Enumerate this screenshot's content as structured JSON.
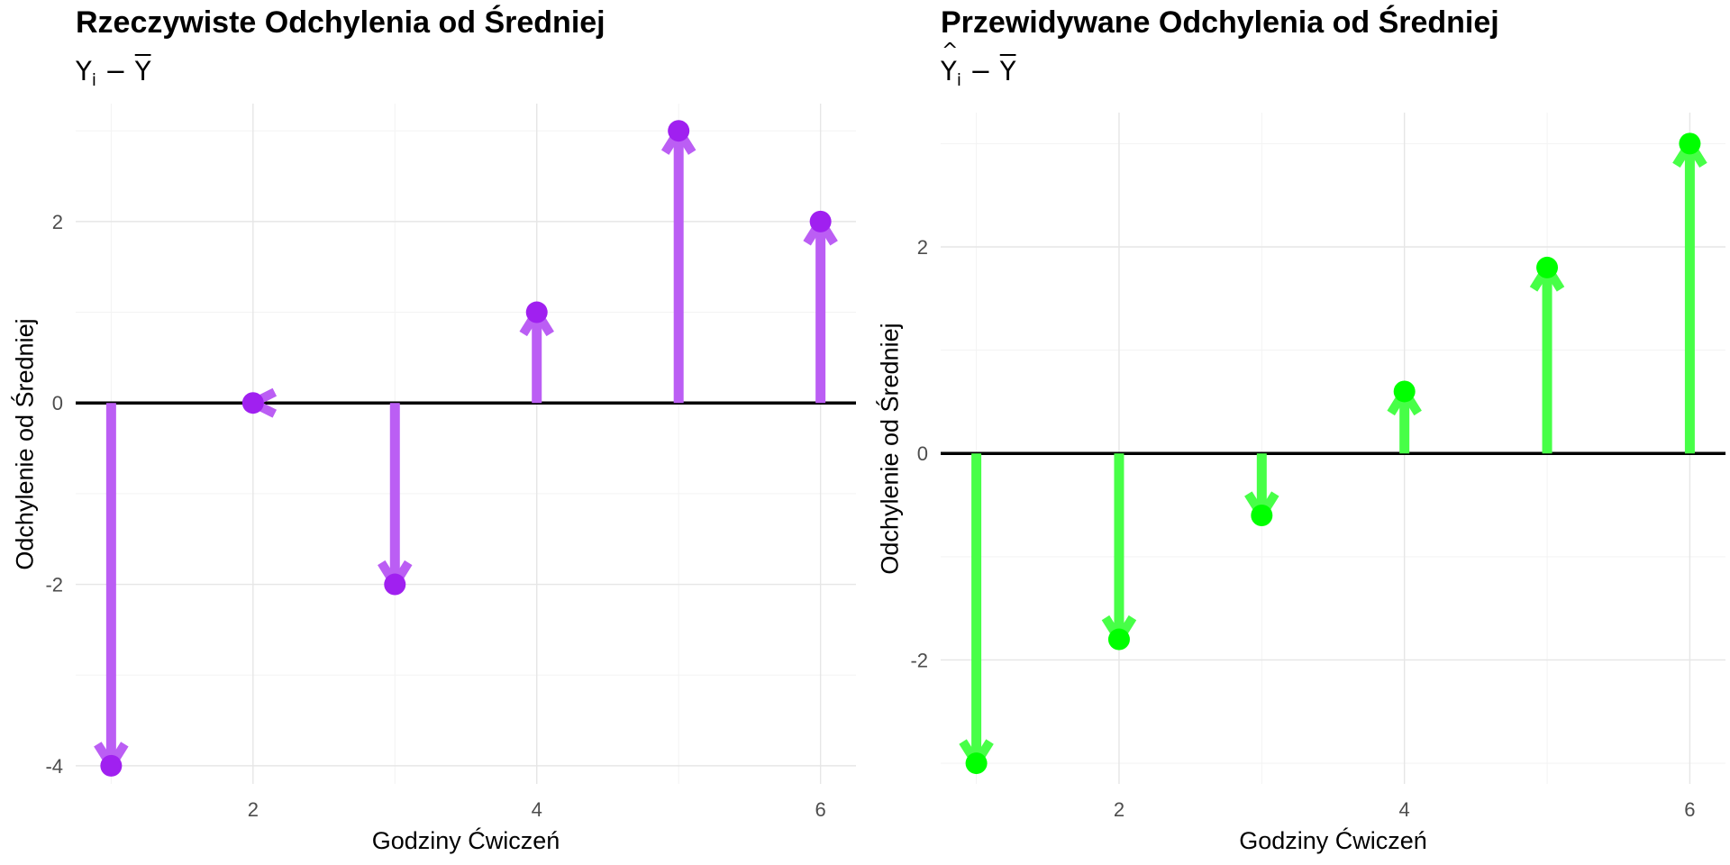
{
  "chart_data": [
    {
      "type": "line",
      "title": "Rzeczywiste Odchylenia od Średniej",
      "subtitle": "Y_i − Ȳ",
      "xlabel": "Godziny Ćwiczeń",
      "ylabel": "Odchylenie od Średniej",
      "xlim": [
        0.75,
        6.25
      ],
      "ylim": [
        -4.2,
        3.3
      ],
      "xticks": [
        2,
        4,
        6
      ],
      "yticks": [
        -4,
        -2,
        0,
        2
      ],
      "x": [
        1,
        2,
        3,
        4,
        5,
        6
      ],
      "values": [
        -4,
        0,
        -2,
        1,
        3,
        2
      ],
      "color": "#A020F0",
      "grid": true,
      "legend": "none"
    },
    {
      "type": "line",
      "title": "Przewidywane Odchylenia od Średniej",
      "subtitle": "Ŷ_i − Ȳ",
      "xlabel": "Godziny Ćwiczeń",
      "ylabel": "Odchylenie od Średniej",
      "xlim": [
        0.75,
        6.25
      ],
      "ylim": [
        -3.2,
        3.3
      ],
      "xticks": [
        2,
        4,
        6
      ],
      "yticks": [
        -2,
        0,
        2
      ],
      "x": [
        1,
        2,
        3,
        4,
        5,
        6
      ],
      "values": [
        -3,
        -1.8,
        -0.6,
        0.6,
        1.8,
        3
      ],
      "color": "#00FF00",
      "grid": true,
      "legend": "none"
    }
  ]
}
